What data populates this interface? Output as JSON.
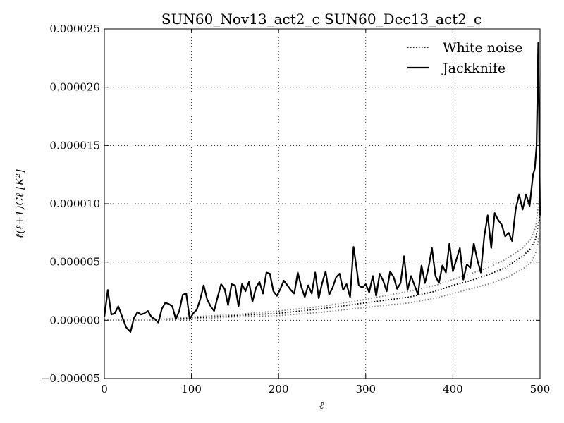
{
  "chart_data": {
    "type": "line",
    "title": "SUN60_Nov13_act2_c SUN60_Dec13_act2_c",
    "xlabel": "ℓ",
    "ylabel": "ℓ(ℓ+1)Cℓ [K²]",
    "xlim": [
      0,
      500
    ],
    "ylim": [
      -5e-06,
      2.5e-05
    ],
    "xticks": [
      0,
      100,
      200,
      300,
      400,
      500
    ],
    "xtick_labels": [
      "0",
      "100",
      "200",
      "300",
      "400",
      "500"
    ],
    "yticks": [
      -5e-06,
      0.0,
      5e-06,
      1e-05,
      1.5e-05,
      2e-05,
      2.5e-05
    ],
    "ytick_labels": [
      "−0.000005",
      "0.000000",
      "0.000005",
      "0.000010",
      "0.000015",
      "0.000020",
      "0.000025"
    ],
    "grid": true,
    "legend_position": "top-right",
    "series": [
      {
        "name": "White noise",
        "style": "dotted",
        "color": "#000000",
        "x": [
          0,
          50,
          100,
          150,
          200,
          250,
          300,
          350,
          380,
          400,
          420,
          440,
          460,
          480,
          490,
          495,
          500
        ],
        "y": [
          0.0,
          0.0,
          2e-07,
          4e-07,
          6e-07,
          1e-06,
          1.5e-06,
          2e-06,
          2.5e-06,
          3e-06,
          3.4e-06,
          3.9e-06,
          4.5e-06,
          5.5e-06,
          6.2e-06,
          7e-06,
          9e-06
        ]
      },
      {
        "name": "",
        "style": "dotted",
        "color": "#808080",
        "x": [
          0,
          50,
          100,
          150,
          200,
          250,
          300,
          350,
          380,
          400,
          420,
          440,
          460,
          480,
          490,
          495,
          500
        ],
        "y": [
          0.0,
          0.0,
          3e-07,
          5e-07,
          8e-07,
          1.2e-06,
          1.8e-06,
          2.5e-06,
          3e-06,
          3.5e-06,
          4e-06,
          4.5e-06,
          5.2e-06,
          6.2e-06,
          7e-06,
          8e-06,
          1.1e-05
        ]
      },
      {
        "name": "",
        "style": "dotted",
        "color": "#808080",
        "x": [
          0,
          50,
          100,
          150,
          200,
          250,
          300,
          350,
          380,
          400,
          420,
          440,
          460,
          480,
          490,
          495,
          500
        ],
        "y": [
          0.0,
          0.0,
          1e-07,
          3e-07,
          4e-07,
          7e-07,
          1.1e-06,
          1.5e-06,
          1.9e-06,
          2.3e-06,
          2.7e-06,
          3.1e-06,
          3.6e-06,
          4.4e-06,
          5e-06,
          5.8e-06,
          7.5e-06
        ]
      },
      {
        "name": "Jackknife",
        "style": "solid",
        "color": "#000000",
        "x": [
          0,
          4,
          8,
          12,
          16,
          20,
          25,
          30,
          34,
          38,
          42,
          46,
          50,
          54,
          58,
          62,
          66,
          70,
          74,
          78,
          82,
          86,
          90,
          94,
          98,
          102,
          106,
          110,
          114,
          118,
          122,
          126,
          130,
          134,
          138,
          142,
          146,
          150,
          154,
          158,
          162,
          166,
          170,
          174,
          178,
          182,
          186,
          190,
          194,
          198,
          202,
          206,
          210,
          214,
          218,
          222,
          226,
          230,
          234,
          238,
          242,
          246,
          250,
          254,
          258,
          262,
          266,
          270,
          274,
          278,
          282,
          286,
          290,
          292,
          296,
          300,
          304,
          308,
          312,
          316,
          320,
          324,
          328,
          332,
          336,
          340,
          344,
          348,
          352,
          356,
          360,
          364,
          368,
          372,
          376,
          380,
          384,
          388,
          392,
          396,
          400,
          404,
          408,
          412,
          416,
          420,
          424,
          428,
          432,
          436,
          440,
          444,
          448,
          452,
          456,
          460,
          464,
          468,
          472,
          476,
          480,
          484,
          488,
          492,
          494,
          496,
          498,
          500
        ],
        "y": [
          3e-07,
          2.6e-06,
          5e-07,
          6e-07,
          1.2e-06,
          4e-07,
          -6e-07,
          -1e-06,
          2e-07,
          7e-07,
          5e-07,
          6e-07,
          8e-07,
          3e-07,
          1e-07,
          -2e-07,
          1e-06,
          1.5e-06,
          1.4e-06,
          1.2e-06,
          1e-07,
          8e-07,
          2.2e-06,
          2.3e-06,
          1e-07,
          6e-07,
          9e-07,
          1.8e-06,
          3e-06,
          1.8e-06,
          1.2e-06,
          8e-07,
          2e-06,
          3.1e-06,
          2.7e-06,
          1.3e-06,
          3.1e-06,
          3e-06,
          1.2e-06,
          3.1e-06,
          2.5e-06,
          3.3e-06,
          1.6e-06,
          2.8e-06,
          3.3e-06,
          2.3e-06,
          4.1e-06,
          4e-06,
          2.5e-06,
          2.1e-06,
          2.7e-06,
          3.4e-06,
          3e-06,
          2.6e-06,
          2.3e-06,
          4.1e-06,
          2.9e-06,
          2e-06,
          3e-06,
          2.3e-06,
          4.1e-06,
          1.9e-06,
          3.2e-06,
          4.2e-06,
          2.2e-06,
          2.8e-06,
          3.7e-06,
          4e-06,
          2.6e-06,
          3.1e-06,
          2e-06,
          6.3e-06,
          4.2e-06,
          3e-06,
          2.8e-06,
          3.1e-06,
          2.4e-06,
          3.8e-06,
          2.1e-06,
          4e-06,
          3.4e-06,
          2.5e-06,
          4.2e-06,
          3.7e-06,
          2.7e-06,
          3.2e-06,
          5.5e-06,
          2.6e-06,
          3.8e-06,
          3e-06,
          2.2e-06,
          4.7e-06,
          3.2e-06,
          4.5e-06,
          6.2e-06,
          3.8e-06,
          3.2e-06,
          4.7e-06,
          4.1e-06,
          6.6e-06,
          4.2e-06,
          5.2e-06,
          6.2e-06,
          3.5e-06,
          4.8e-06,
          4.5e-06,
          6.6e-06,
          5.2e-06,
          4.1e-06,
          7.2e-06,
          9e-06,
          6.2e-06,
          9.2e-06,
          8.6e-06,
          8.2e-06,
          7.2e-06,
          7.5e-06,
          6.8e-06,
          9.5e-06,
          1.08e-05,
          9.5e-06,
          1.08e-05,
          9.8e-06,
          1.25e-05,
          1.3e-05,
          1.5e-05,
          2.38e-05,
          9e-06
        ]
      }
    ]
  }
}
